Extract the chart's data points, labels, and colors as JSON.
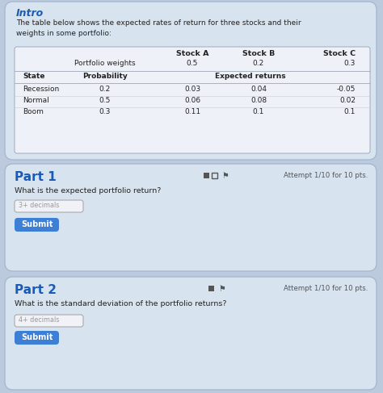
{
  "title": "Intro",
  "intro_text": "The table below shows the expected rates of return for three stocks and their\nweights in some portfolio:",
  "header_row1_cols": [
    "Stock A",
    "Stock B",
    "Stock C"
  ],
  "header_row2_label": "Portfolio weights",
  "header_row2_vals": [
    "0.5",
    "0.2",
    "0.3"
  ],
  "subheader_state": "State",
  "subheader_prob": "Probability",
  "subheader_exp": "Expected returns",
  "table_data": [
    [
      "Recession",
      "0.2",
      "0.03",
      "0.04",
      "-0.05"
    ],
    [
      "Normal",
      "0.5",
      "0.06",
      "0.08",
      "0.02"
    ],
    [
      "Boom",
      "0.3",
      "0.11",
      "0.1",
      "0.1"
    ]
  ],
  "part1_title": "Part 1",
  "part1_attempt": "Attempt 1/10 for 10 pts.",
  "part1_question": "What is the expected portfolio return?",
  "part1_placeholder": "3+ decimals",
  "part1_button": "Submit",
  "part2_title": "Part 2",
  "part2_attempt": "Attempt 1/10 for 10 pts.",
  "part2_question": "What is the standard deviation of the portfolio returns?",
  "part2_placeholder": "4+ decimals",
  "part2_button": "Submit",
  "bg_color": "#bccade",
  "card_color": "#d8e3f0",
  "table_bg": "#eef1f8",
  "title_color": "#1a5bb5",
  "text_color": "#222222",
  "button_color": "#3d7fd4",
  "button_text_color": "#ffffff",
  "input_bg": "#f0f2f8",
  "input_border": "#aaaaaa",
  "line_color": "#aab0c0"
}
